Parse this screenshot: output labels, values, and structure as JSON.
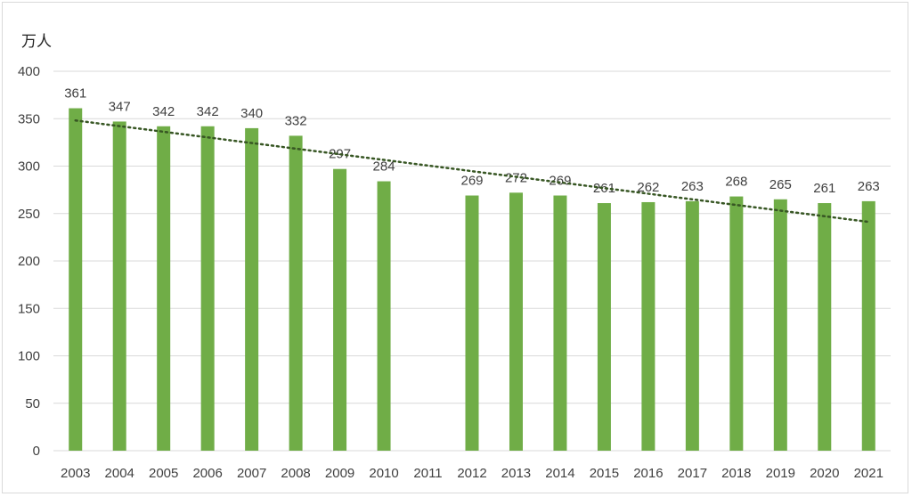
{
  "chart_data": {
    "type": "bar",
    "y_unit_label": "万人",
    "categories": [
      "2003",
      "2004",
      "2005",
      "2006",
      "2007",
      "2008",
      "2009",
      "2010",
      "2011",
      "2012",
      "2013",
      "2014",
      "2015",
      "2016",
      "2017",
      "2018",
      "2019",
      "2020",
      "2021"
    ],
    "values": [
      361,
      347,
      342,
      342,
      340,
      332,
      297,
      284,
      null,
      269,
      272,
      269,
      261,
      262,
      263,
      268,
      265,
      261,
      263
    ],
    "ylim": [
      0,
      400
    ],
    "yticks": [
      0,
      50,
      100,
      150,
      200,
      250,
      300,
      350,
      400
    ],
    "grid": true,
    "legend": "none",
    "trendline": {
      "type": "linear",
      "style": "dotted"
    },
    "colors": {
      "bar": "#70ad47",
      "trendline": "#375623",
      "grid": "#d9d9d9"
    }
  }
}
